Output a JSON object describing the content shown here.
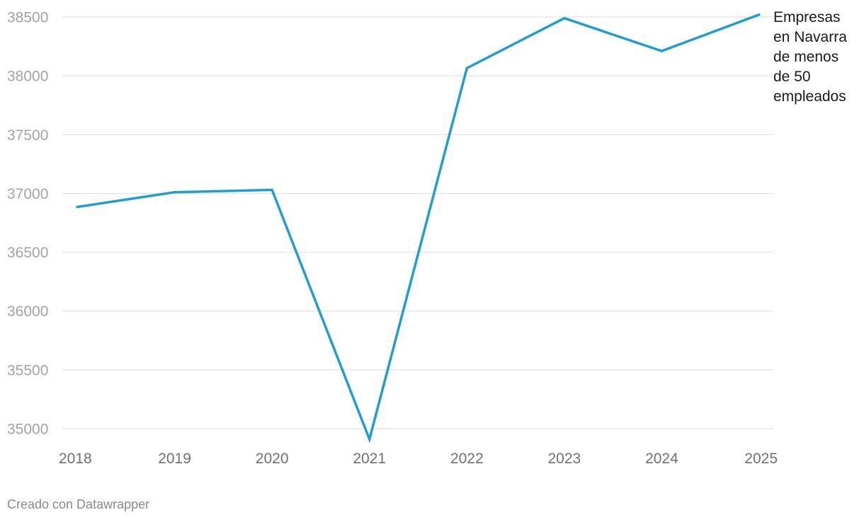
{
  "chart_data": {
    "type": "line",
    "x": [
      "2018",
      "2019",
      "2020",
      "2021",
      "2022",
      "2023",
      "2024",
      "2025"
    ],
    "series": [
      {
        "name": "Empresas en Navarra de menos de 50 empleados",
        "label_lines": [
          "Empresas",
          "en Navarra",
          "de menos",
          "de 50",
          "empleados"
        ],
        "values": [
          36885,
          37010,
          37030,
          34910,
          38065,
          38490,
          38210,
          38520
        ],
        "color": "#1f9fcf"
      }
    ],
    "yticks": [
      "35000",
      "35500",
      "36000",
      "36500",
      "37000",
      "37500",
      "38000",
      "38500"
    ],
    "ylim": [
      35000,
      38500
    ],
    "grid": true,
    "legend": "inline-right"
  },
  "footer": "Creado con Datawrapper"
}
